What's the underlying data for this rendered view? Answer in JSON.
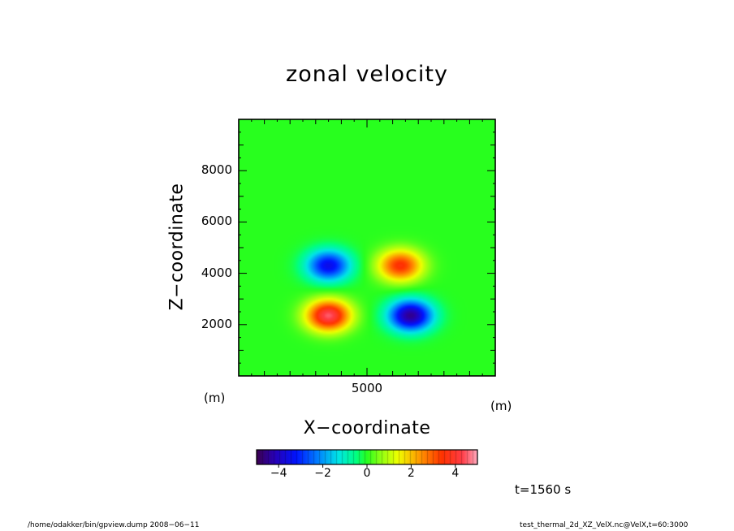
{
  "chart_data": {
    "type": "heatmap",
    "title": "zonal velocity",
    "xlabel": "X−coordinate",
    "ylabel": "Z−coordinate",
    "x_unit": "(m)",
    "y_unit": "(m)",
    "xlim": [
      0,
      10000
    ],
    "ylim": [
      0,
      10000
    ],
    "x_ticks": [
      5000
    ],
    "y_ticks": [
      2000,
      4000,
      6000,
      8000
    ],
    "colorbar": {
      "range": [
        -5,
        5
      ],
      "ticks": [
        -4,
        -2,
        0,
        2,
        4
      ],
      "tick_labels": [
        "−4",
        "−2",
        "0",
        "2",
        "4"
      ],
      "colormap": "rainbow (purple-blue-cyan-green-yellow-red-pink)"
    },
    "features": [
      {
        "x": 3500,
        "z": 2350,
        "value": 4.5,
        "note": "red maximum"
      },
      {
        "x": 6700,
        "z": 2350,
        "value": -4.5,
        "note": "blue minimum"
      },
      {
        "x": 3500,
        "z": 4300,
        "value": -3.5,
        "note": "blue upper lobe"
      },
      {
        "x": 6300,
        "z": 4300,
        "value": 3.5,
        "note": "orange upper lobe"
      }
    ],
    "annotation": "t=1560 s"
  },
  "footer": {
    "left": "/home/odakker/bin/gpview.dump   2008−06−11",
    "right": "test_thermal_2d_XZ_VelX.nc@VelX,t=60:3000"
  }
}
